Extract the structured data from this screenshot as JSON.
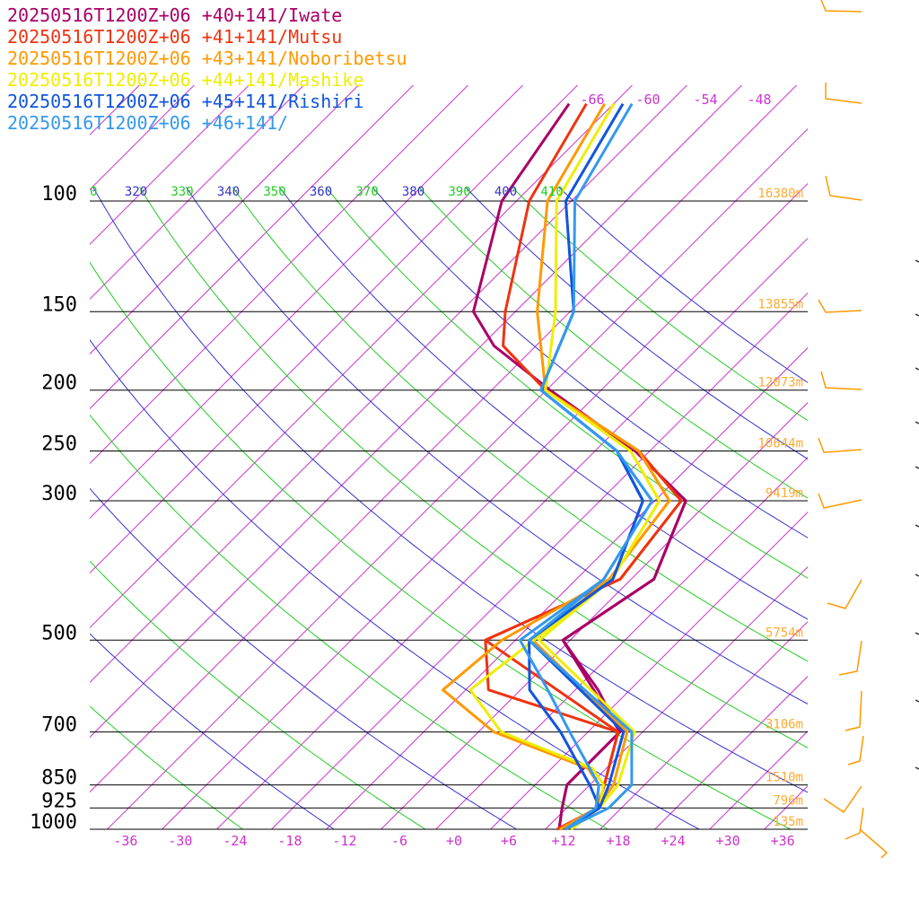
{
  "chart_data": {
    "type": "line",
    "title": "",
    "legend": [
      {
        "text": "20250516T1200Z+06 +40+141/Iwate",
        "color": "#aa0066"
      },
      {
        "text": "20250516T1200Z+06 +41+141/Mutsu",
        "color": "#ee3311"
      },
      {
        "text": "20250516T1200Z+06 +43+141/Noboribetsu",
        "color": "#ff9900"
      },
      {
        "text": "20250516T1200Z+06 +44+141/Mashike",
        "color": "#eeee00"
      },
      {
        "text": "20250516T1200Z+06 +45+141/Rishiri",
        "color": "#1155dd"
      },
      {
        "text": "20250516T1200Z+06 +46+141/",
        "color": "#3399ee"
      }
    ],
    "pressure_levels": [
      {
        "p": 100,
        "label": "100",
        "height": "16380m"
      },
      {
        "p": 150,
        "label": "150",
        "height": "13855m"
      },
      {
        "p": 200,
        "label": "200",
        "height": "12073m"
      },
      {
        "p": 250,
        "label": "250",
        "height": "10644m"
      },
      {
        "p": 300,
        "label": "300",
        "height": "9419m"
      },
      {
        "p": 500,
        "label": "500",
        "height": "5754m"
      },
      {
        "p": 700,
        "label": "700",
        "height": "3106m"
      },
      {
        "p": 850,
        "label": "850",
        "height": "1510m"
      },
      {
        "p": 925,
        "label": "925",
        "height": "796m"
      },
      {
        "p": 1000,
        "label": "1000",
        "height": "135m"
      }
    ],
    "x_ticks": [
      -36,
      -30,
      -24,
      -18,
      -12,
      -6,
      0,
      6,
      12,
      18,
      24,
      30,
      36
    ],
    "x_tick_labels": [
      "-36",
      "-30",
      "-24",
      "-18",
      "-12",
      "-6",
      "+0",
      "+6",
      "+12",
      "+18",
      "+24",
      "+30",
      "+36"
    ],
    "upper_temp_labels": [
      "-66",
      "-60",
      "-54",
      "-48"
    ],
    "theta_labels": [
      {
        "text": "0",
        "color": "#22cc22"
      },
      {
        "text": "320",
        "color": "#3333cc"
      },
      {
        "text": "330",
        "color": "#22cc22"
      },
      {
        "text": "340",
        "color": "#3333cc"
      },
      {
        "text": "350",
        "color": "#22cc22"
      },
      {
        "text": "360",
        "color": "#3333cc"
      },
      {
        "text": "370",
        "color": "#22cc22"
      },
      {
        "text": "380",
        "color": "#3333cc"
      },
      {
        "text": "390",
        "color": "#22cc22"
      },
      {
        "text": "400",
        "color": "#3333cc"
      },
      {
        "text": "410",
        "color": "#22cc22"
      }
    ],
    "series": [
      {
        "name": "20250516T1200Z+06 +40+141/Iwate",
        "color": "#aa0066",
        "temperature": [
          [
            1000,
            11.5
          ],
          [
            925,
            9.5
          ],
          [
            850,
            7.5
          ],
          [
            700,
            7.5
          ],
          [
            500,
            -8.8
          ],
          [
            400,
            -5.5
          ],
          [
            300,
            -10.6
          ],
          [
            250,
            -21.6
          ],
          [
            200,
            -37.6
          ],
          [
            170,
            -48.6
          ],
          [
            150,
            -54.6
          ],
          [
            100,
            -63.6
          ],
          [
            70,
            -66.9
          ]
        ],
        "dewpoint": [
          [
            1000,
            11.5
          ],
          [
            925,
            9.5
          ],
          [
            850,
            7.5
          ],
          [
            700,
            7.5
          ],
          [
            600,
            0.5
          ],
          [
            500,
            -8.8
          ],
          [
            400,
            -5.5
          ],
          [
            300,
            -10.6
          ],
          [
            250,
            -21.6
          ],
          [
            200,
            -37.6
          ]
        ]
      },
      {
        "name": "20250516T1200Z+06 +41+141/Mutsu",
        "color": "#ee3311",
        "temperature": [
          [
            1000,
            11.3
          ],
          [
            925,
            13.4
          ],
          [
            850,
            11.6
          ],
          [
            700,
            7.3
          ],
          [
            500,
            -17.3
          ],
          [
            400,
            -9.2
          ],
          [
            300,
            -11.1
          ],
          [
            250,
            -21.2
          ],
          [
            200,
            -38.1
          ],
          [
            170,
            -47.6
          ],
          [
            150,
            -51.1
          ],
          [
            100,
            -60.6
          ],
          [
            70,
            -65
          ]
        ],
        "dewpoint": [
          [
            1000,
            11.3
          ],
          [
            925,
            13.4
          ],
          [
            850,
            11.6
          ],
          [
            700,
            7.3
          ],
          [
            600,
            -11.5
          ],
          [
            500,
            -17.3
          ],
          [
            400,
            -9.2
          ],
          [
            300,
            -11.1
          ],
          [
            250,
            -21.2
          ],
          [
            200,
            -38.1
          ]
        ]
      },
      {
        "name": "20250516T1200Z+06 +43+141/Noboribetsu",
        "color": "#ff9900",
        "temperature": [
          [
            1000,
            11.6
          ],
          [
            925,
            13.3
          ],
          [
            850,
            12.6
          ],
          [
            700,
            8.3
          ],
          [
            500,
            -12.1
          ],
          [
            400,
            -10.4
          ],
          [
            300,
            -12.4
          ],
          [
            250,
            -21.2
          ],
          [
            200,
            -38.1
          ],
          [
            150,
            -47.6
          ],
          [
            100,
            -58.6
          ],
          [
            70,
            -63
          ]
        ],
        "dewpoint": [
          [
            1000,
            11.6
          ],
          [
            925,
            13.3
          ],
          [
            850,
            11
          ],
          [
            800,
            8
          ],
          [
            700,
            -6.3
          ],
          [
            600,
            -16.5
          ],
          [
            500,
            -15.5
          ],
          [
            400,
            -10.4
          ],
          [
            300,
            -12.4
          ],
          [
            250,
            -21.2
          ],
          [
            200,
            -38.1
          ]
        ]
      },
      {
        "name": "20250516T1200Z+06 +44+141/Mashike",
        "color": "#eeee00",
        "temperature": [
          [
            1000,
            12.8
          ],
          [
            925,
            13.6
          ],
          [
            850,
            13.1
          ],
          [
            700,
            9.1
          ],
          [
            500,
            -11.4
          ],
          [
            400,
            -10.1
          ],
          [
            300,
            -13.5
          ],
          [
            250,
            -22.1
          ],
          [
            200,
            -38.1
          ],
          [
            150,
            -45.6
          ],
          [
            100,
            -57.6
          ],
          [
            70,
            -62
          ]
        ],
        "dewpoint": [
          [
            1000,
            12.8
          ],
          [
            925,
            13.6
          ],
          [
            850,
            11.5
          ],
          [
            800,
            8.5
          ],
          [
            700,
            -5.5
          ],
          [
            600,
            -13.5
          ],
          [
            500,
            -12
          ],
          [
            400,
            -10.1
          ],
          [
            300,
            -13.5
          ],
          [
            250,
            -22.1
          ],
          [
            200,
            -38.1
          ]
        ]
      },
      {
        "name": "20250516T1200Z+06 +45+141/Rishiri",
        "color": "#1155dd",
        "temperature": [
          [
            1000,
            12.2
          ],
          [
            925,
            13.6
          ],
          [
            850,
            12.1
          ],
          [
            700,
            7.9
          ],
          [
            500,
            -12.5
          ],
          [
            400,
            -10
          ],
          [
            300,
            -15.3
          ],
          [
            250,
            -23.6
          ],
          [
            200,
            -38.6
          ],
          [
            150,
            -43.6
          ],
          [
            100,
            -56.6
          ],
          [
            70,
            -61
          ]
        ],
        "dewpoint": [
          [
            1000,
            12.2
          ],
          [
            925,
            13.6
          ],
          [
            850,
            10
          ],
          [
            700,
            1
          ],
          [
            600,
            -7
          ],
          [
            500,
            -12.5
          ],
          [
            400,
            -10
          ],
          [
            300,
            -15.3
          ],
          [
            250,
            -23.6
          ],
          [
            200,
            -38.6
          ]
        ]
      },
      {
        "name": "20250516T1200Z+06 +46+141/",
        "color": "#3399ee",
        "temperature": [
          [
            1000,
            12.2
          ],
          [
            925,
            14.6
          ],
          [
            850,
            14.6
          ],
          [
            700,
            8.8
          ],
          [
            500,
            -12.5
          ],
          [
            400,
            -11
          ],
          [
            300,
            -14.3
          ],
          [
            250,
            -23.6
          ],
          [
            200,
            -38.6
          ],
          [
            150,
            -43.6
          ],
          [
            100,
            -55.6
          ],
          [
            70,
            -60
          ]
        ],
        "dewpoint": [
          [
            1000,
            12.2
          ],
          [
            925,
            13.2
          ],
          [
            850,
            11
          ],
          [
            700,
            2
          ],
          [
            600,
            -5
          ],
          [
            500,
            -13.5
          ],
          [
            400,
            -11
          ],
          [
            300,
            -14.3
          ],
          [
            250,
            -23.6
          ],
          [
            200,
            -38.6
          ]
        ]
      }
    ],
    "ylabel": "",
    "xlabel": "",
    "y_scale": "log-pressure",
    "grid": true,
    "legend_position": "top-left",
    "colors": {
      "isobar": "#000000",
      "isotherm": "#cc33cc",
      "dry_adiabat_blue": "#3333cc",
      "dry_adiabat_green": "#22cc22",
      "height_label": "#ffaa33",
      "tick_label": "#cc33cc",
      "wind_barb": "#ff9900"
    }
  }
}
